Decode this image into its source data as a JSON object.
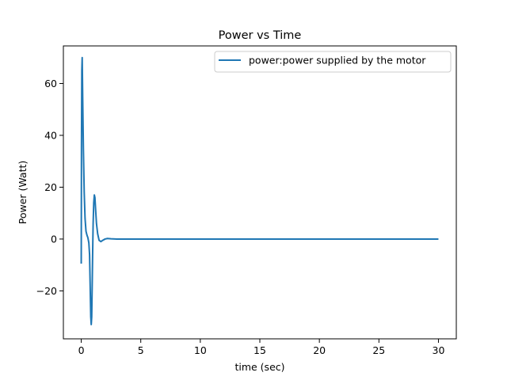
{
  "chart_data": {
    "type": "line",
    "title": "Power vs Time",
    "xlabel": "time (sec)",
    "ylabel": "Power (Watt)",
    "xlim": [
      -1.5,
      31.5
    ],
    "ylim": [
      -38.5,
      74.5
    ],
    "xticks": [
      {
        "value": 0,
        "label": "0"
      },
      {
        "value": 5,
        "label": "5"
      },
      {
        "value": 10,
        "label": "10"
      },
      {
        "value": 15,
        "label": "15"
      },
      {
        "value": 20,
        "label": "20"
      },
      {
        "value": 25,
        "label": "25"
      },
      {
        "value": 30,
        "label": "30"
      }
    ],
    "yticks": [
      {
        "value": -20,
        "label": "−20"
      },
      {
        "value": 0,
        "label": "0"
      },
      {
        "value": 20,
        "label": "20"
      },
      {
        "value": 40,
        "label": "40"
      },
      {
        "value": 60,
        "label": "60"
      }
    ],
    "grid": false,
    "legend_position": "upper-right",
    "series": [
      {
        "name": "power:power supplied by the motor",
        "color": "#1f77b4",
        "x": [
          0,
          0.02,
          0.05,
          0.08,
          0.12,
          0.18,
          0.25,
          0.32,
          0.4,
          0.48,
          0.56,
          0.64,
          0.7,
          0.75,
          0.8,
          0.84,
          0.88,
          0.92,
          0.96,
          1.0,
          1.05,
          1.1,
          1.15,
          1.2,
          1.28,
          1.38,
          1.5,
          1.65,
          1.8,
          2.0,
          2.2,
          2.5,
          3.0,
          4.0,
          5.0,
          10.0,
          15.0,
          20.0,
          25.0,
          30.0
        ],
        "y": [
          -9.5,
          35,
          65,
          70,
          55,
          35,
          18,
          8,
          3,
          1.5,
          0.5,
          -1.5,
          -6,
          -18,
          -30,
          -33,
          -30,
          -18,
          -5,
          6,
          14,
          17,
          16,
          12,
          6,
          2,
          -0.5,
          -1,
          -0.5,
          0,
          0.2,
          0.1,
          0,
          0,
          0,
          0,
          0,
          0,
          0,
          0
        ]
      }
    ]
  }
}
